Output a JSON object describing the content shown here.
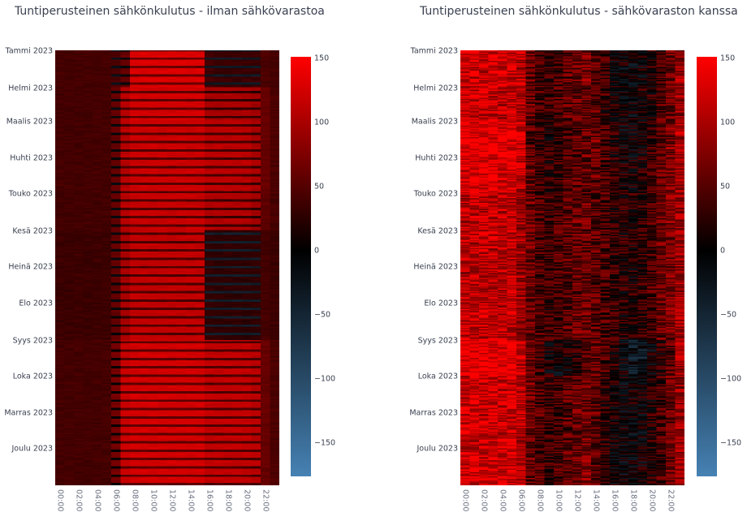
{
  "chart_data": [
    {
      "type": "heatmap",
      "title": "Tuntiperusteinen sähkönkulutus - ilman sähkövarastoa",
      "x_ticks": [
        "00:00",
        "02:00",
        "04:00",
        "06:00",
        "08:00",
        "10:00",
        "12:00",
        "14:00",
        "16:00",
        "18:00",
        "20:00",
        "22:00"
      ],
      "y_ticks": [
        "Tammi 2023",
        "Helmi 2023",
        "Maalis 2023",
        "Huhti 2023",
        "Touko 2023",
        "Kesä 2023",
        "Heinä 2023",
        "Elo 2023",
        "Syys 2023",
        "Loka 2023",
        "Marras 2023",
        "Joulu 2023"
      ],
      "colorbar": {
        "ticks": [
          "150",
          "100",
          "50",
          "0",
          "−50",
          "−100",
          "−150"
        ],
        "range": [
          -176,
          151
        ],
        "colors": {
          "min": "#4682b4",
          "zero": "#000000",
          "max": "#ff0000"
        }
      },
      "days": 365,
      "hours": 24,
      "monthly_hourly_profile": [
        [
          40,
          40,
          40,
          40,
          40,
          40,
          45,
          60,
          130,
          130,
          130,
          130,
          130,
          130,
          130,
          130,
          40,
          35,
          35,
          35,
          35,
          35,
          45,
          40
        ],
        [
          40,
          40,
          40,
          40,
          40,
          40,
          60,
          110,
          125,
          125,
          125,
          125,
          125,
          125,
          125,
          125,
          100,
          100,
          100,
          100,
          100,
          95,
          60,
          45
        ],
        [
          40,
          40,
          40,
          40,
          40,
          40,
          60,
          110,
          120,
          120,
          120,
          120,
          120,
          120,
          120,
          120,
          110,
          110,
          110,
          110,
          110,
          100,
          60,
          45
        ],
        [
          40,
          40,
          40,
          40,
          40,
          40,
          60,
          110,
          120,
          120,
          120,
          120,
          120,
          120,
          120,
          120,
          110,
          110,
          110,
          110,
          110,
          100,
          60,
          45
        ],
        [
          38,
          38,
          38,
          38,
          38,
          38,
          60,
          110,
          118,
          118,
          118,
          118,
          118,
          118,
          118,
          118,
          105,
          105,
          105,
          105,
          105,
          95,
          55,
          42
        ],
        [
          35,
          35,
          35,
          35,
          35,
          35,
          60,
          100,
          115,
          115,
          115,
          115,
          115,
          115,
          115,
          115,
          30,
          28,
          28,
          28,
          28,
          30,
          40,
          35
        ],
        [
          35,
          35,
          35,
          35,
          35,
          35,
          60,
          100,
          115,
          115,
          115,
          115,
          115,
          115,
          115,
          115,
          30,
          28,
          28,
          28,
          28,
          30,
          40,
          35
        ],
        [
          35,
          35,
          35,
          35,
          35,
          35,
          60,
          100,
          115,
          115,
          115,
          115,
          115,
          115,
          115,
          115,
          30,
          28,
          28,
          28,
          28,
          30,
          40,
          35
        ],
        [
          40,
          40,
          40,
          40,
          40,
          40,
          70,
          120,
          125,
          125,
          125,
          125,
          125,
          125,
          125,
          125,
          115,
          115,
          115,
          115,
          115,
          110,
          60,
          45
        ],
        [
          40,
          40,
          40,
          40,
          40,
          40,
          70,
          120,
          125,
          125,
          125,
          125,
          125,
          125,
          125,
          125,
          115,
          115,
          115,
          115,
          115,
          110,
          60,
          45
        ],
        [
          40,
          40,
          40,
          40,
          40,
          40,
          70,
          120,
          125,
          125,
          125,
          125,
          125,
          125,
          125,
          125,
          115,
          115,
          115,
          115,
          115,
          110,
          60,
          45
        ],
        [
          40,
          40,
          40,
          40,
          40,
          40,
          70,
          120,
          125,
          125,
          125,
          125,
          125,
          125,
          125,
          125,
          115,
          115,
          115,
          115,
          115,
          110,
          60,
          45
        ]
      ]
    },
    {
      "type": "heatmap",
      "title": "Tuntiperusteinen sähkönkulutus - sähkövaraston kanssa",
      "x_ticks": [
        "00:00",
        "02:00",
        "04:00",
        "06:00",
        "08:00",
        "10:00",
        "12:00",
        "14:00",
        "16:00",
        "18:00",
        "20:00",
        "22:00"
      ],
      "y_ticks": [
        "Tammi 2023",
        "Helmi 2023",
        "Maalis 2023",
        "Huhti 2023",
        "Touko 2023",
        "Kesä 2023",
        "Heinä 2023",
        "Elo 2023",
        "Syys 2023",
        "Loka 2023",
        "Marras 2023",
        "Joulu 2023"
      ],
      "colorbar": {
        "ticks": [
          "150",
          "100",
          "50",
          "0",
          "−50",
          "−100",
          "−150"
        ],
        "range": [
          -176,
          151
        ],
        "colors": {
          "min": "#4682b4",
          "zero": "#000000",
          "max": "#ff0000"
        }
      },
      "days": 365,
      "hours": 24,
      "monthly_hourly_profile": [
        [
          120,
          120,
          120,
          120,
          120,
          120,
          110,
          60,
          40,
          30,
          40,
          50,
          60,
          70,
          50,
          30,
          5,
          0,
          0,
          5,
          20,
          40,
          60,
          90
        ],
        [
          115,
          115,
          115,
          115,
          115,
          115,
          100,
          60,
          40,
          30,
          40,
          50,
          60,
          60,
          50,
          30,
          10,
          0,
          0,
          10,
          25,
          45,
          65,
          90
        ],
        [
          140,
          140,
          140,
          140,
          140,
          140,
          120,
          50,
          30,
          20,
          30,
          40,
          50,
          60,
          60,
          40,
          20,
          0,
          0,
          10,
          30,
          50,
          70,
          100
        ],
        [
          130,
          130,
          130,
          130,
          130,
          130,
          110,
          55,
          35,
          25,
          35,
          45,
          55,
          60,
          55,
          40,
          25,
          10,
          10,
          20,
          35,
          55,
          70,
          95
        ],
        [
          110,
          110,
          110,
          110,
          110,
          110,
          90,
          60,
          40,
          30,
          40,
          50,
          60,
          60,
          50,
          40,
          30,
          20,
          20,
          30,
          40,
          60,
          70,
          90
        ],
        [
          110,
          110,
          110,
          110,
          110,
          110,
          90,
          60,
          40,
          30,
          40,
          50,
          60,
          60,
          50,
          40,
          30,
          20,
          20,
          30,
          40,
          60,
          70,
          90
        ],
        [
          110,
          110,
          110,
          110,
          110,
          110,
          90,
          60,
          40,
          30,
          40,
          50,
          60,
          60,
          50,
          40,
          30,
          20,
          20,
          30,
          40,
          60,
          70,
          90
        ],
        [
          110,
          110,
          110,
          110,
          110,
          110,
          90,
          60,
          40,
          30,
          40,
          50,
          60,
          60,
          50,
          40,
          30,
          20,
          20,
          30,
          40,
          60,
          70,
          90
        ],
        [
          140,
          140,
          140,
          140,
          140,
          140,
          120,
          60,
          30,
          10,
          0,
          10,
          30,
          50,
          60,
          40,
          20,
          0,
          -30,
          -30,
          0,
          20,
          50,
          100
        ],
        [
          120,
          120,
          120,
          120,
          120,
          120,
          110,
          60,
          40,
          30,
          40,
          50,
          60,
          70,
          50,
          30,
          5,
          0,
          0,
          5,
          20,
          40,
          60,
          90
        ],
        [
          120,
          120,
          120,
          120,
          120,
          120,
          110,
          60,
          40,
          30,
          40,
          50,
          60,
          70,
          50,
          30,
          5,
          0,
          0,
          5,
          20,
          40,
          60,
          90
        ],
        [
          120,
          120,
          120,
          120,
          120,
          120,
          110,
          60,
          40,
          30,
          40,
          50,
          60,
          70,
          50,
          30,
          5,
          0,
          0,
          5,
          20,
          40,
          60,
          90
        ]
      ]
    }
  ]
}
